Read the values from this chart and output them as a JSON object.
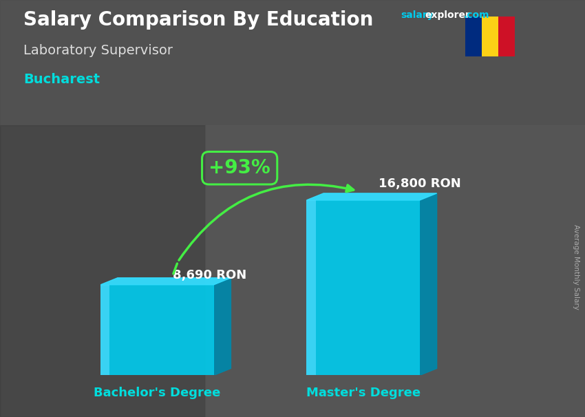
{
  "title": "Salary Comparison By Education",
  "subtitle": "Laboratory Supervisor",
  "city": "Bucharest",
  "categories": [
    "Bachelor's Degree",
    "Master's Degree"
  ],
  "values": [
    8690,
    16800
  ],
  "value_labels": [
    "8,690 RON",
    "16,800 RON"
  ],
  "pct_change": "+93%",
  "bar_color_main": "#00CCEE",
  "bar_color_dark": "#0088AA",
  "bar_color_light": "#55DDFF",
  "bar_color_top": "#33DDFF",
  "ylabel": "Average Monthly Salary",
  "bg_color": "#5a5a5a",
  "title_color": "#FFFFFF",
  "subtitle_color": "#DDDDDD",
  "city_color": "#00DDDD",
  "label_color": "#FFFFFF",
  "category_color": "#00DDDD",
  "pct_color": "#44EE44",
  "arrow_color": "#44EE44",
  "website_salary_color": "#00CCEE",
  "website_explorer_color": "#FFFFFF",
  "website_com_color": "#00CCEE",
  "flag_colors": [
    "#002B7F",
    "#FCD116",
    "#CE1126"
  ],
  "ylim": [
    0,
    22000
  ],
  "bar_positions": [
    0.28,
    0.68
  ],
  "bar_width": 0.22
}
